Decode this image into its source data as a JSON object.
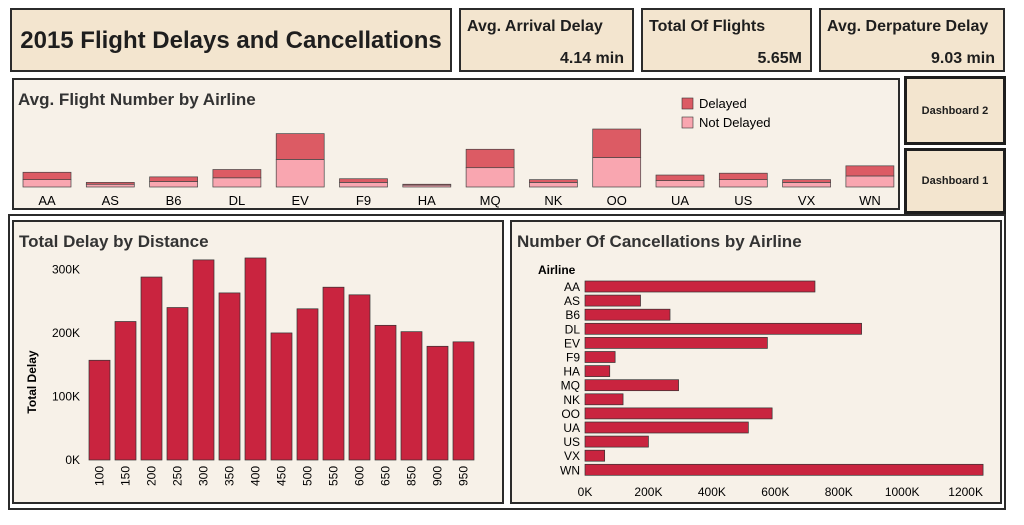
{
  "dashboard": {
    "title": "2015 Flight Delays and Cancellations"
  },
  "kpis": [
    {
      "label": "Avg. Arrival Delay",
      "value": "4.14 min"
    },
    {
      "label": "Total Of Flights",
      "value": "5.65M"
    },
    {
      "label": "Avg. Derpature Delay",
      "value": "9.03 min"
    }
  ],
  "nav": {
    "dashboard2": "Dashboard 2",
    "dashboard1": "Dashboard 1"
  },
  "colors": {
    "delayed": "#dc5b64",
    "not_delayed": "#f9a6b0",
    "bar": "#c9243f"
  },
  "chart_data": [
    {
      "type": "bar",
      "stacked": true,
      "title": "Avg. Flight Number by Airline",
      "categories": [
        "AA",
        "AS",
        "B6",
        "DL",
        "EV",
        "F9",
        "HA",
        "MQ",
        "NK",
        "OO",
        "UA",
        "US",
        "VX",
        "WN"
      ],
      "series": [
        {
          "name": "Delayed",
          "values": [
            8,
            2,
            5,
            9,
            28,
            4,
            1,
            20,
            3,
            31,
            6,
            7,
            3,
            11
          ]
        },
        {
          "name": "Not Delayed",
          "values": [
            8,
            3,
            6,
            10,
            30,
            5,
            2,
            21,
            5,
            32,
            7,
            8,
            5,
            12
          ]
        }
      ],
      "legend": "top-right"
    },
    {
      "type": "bar",
      "title": "Total Delay by Distance",
      "categories": [
        "100",
        "150",
        "200",
        "250",
        "300",
        "350",
        "400",
        "450",
        "500",
        "550",
        "600",
        "650",
        "850",
        "900",
        "950"
      ],
      "values": [
        157000,
        218000,
        288000,
        240000,
        315000,
        263000,
        318000,
        200000,
        238000,
        272000,
        260000,
        212000,
        202000,
        179000,
        186000
      ],
      "ylabel": "Total Delay",
      "yticks": [
        "0K",
        "100K",
        "200K",
        "300K"
      ],
      "ylim": [
        0,
        340000
      ]
    },
    {
      "type": "bar",
      "orientation": "horizontal",
      "title": "Number Of Cancellations by Airline",
      "axis_header": "Airline",
      "categories": [
        "AA",
        "AS",
        "B6",
        "DL",
        "EV",
        "F9",
        "HA",
        "MQ",
        "NK",
        "OO",
        "UA",
        "US",
        "VX",
        "WN"
      ],
      "values": [
        725000,
        175000,
        268000,
        872000,
        575000,
        95000,
        78000,
        295000,
        120000,
        590000,
        515000,
        200000,
        62000,
        1255000
      ],
      "xticks": [
        "0K",
        "200K",
        "400K",
        "600K",
        "800K",
        "1000K",
        "1200K"
      ],
      "xlim": [
        0,
        1280000
      ]
    }
  ]
}
